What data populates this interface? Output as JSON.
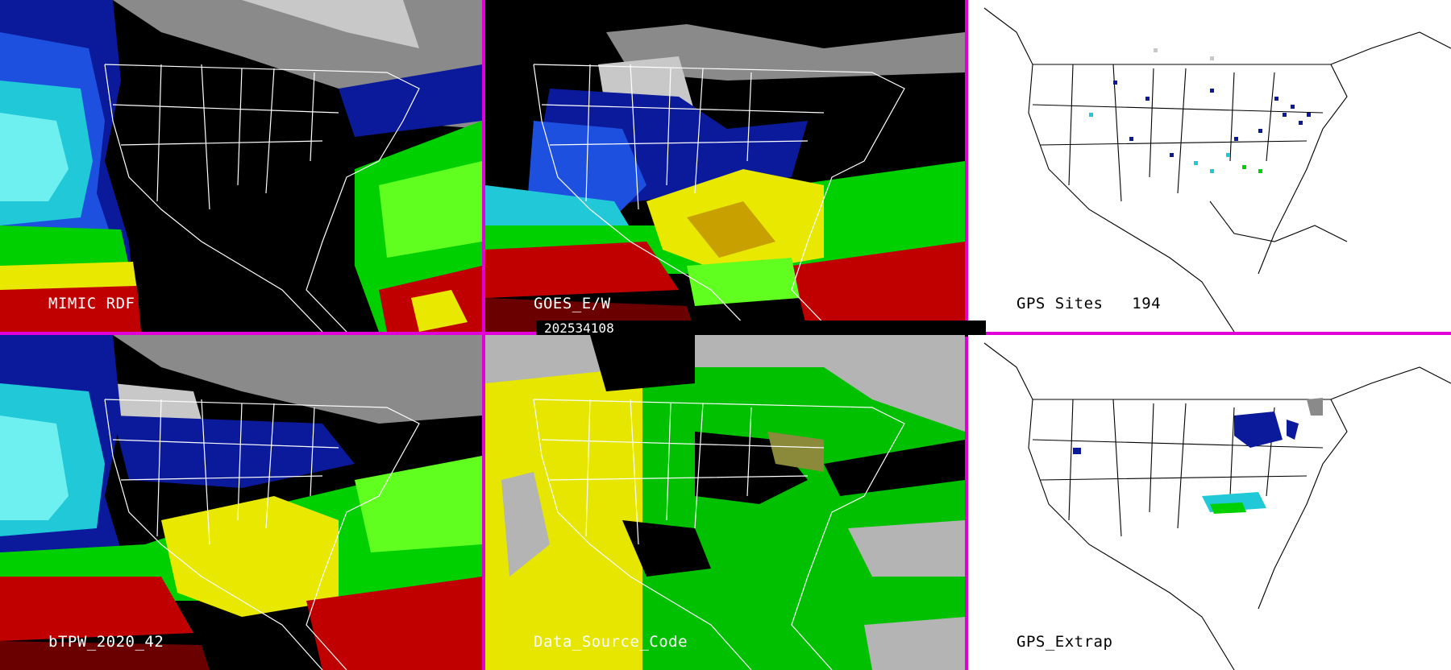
{
  "timestamp": "202534108",
  "colors": {
    "separator": "#e000d8",
    "boundary_on_dark": "#ffffff",
    "boundary_on_white": "#000000",
    "tpw_scale": [
      "#8a8a8a",
      "#c8c8c8",
      "#0a1a9a",
      "#1e50e0",
      "#20c8d8",
      "#6ff0f0",
      "#00d000",
      "#60ff20",
      "#e8e800",
      "#c8a000",
      "#c00000",
      "#6a0000"
    ],
    "source_code": [
      "#b4b4b4",
      "#e6e600",
      "#00c000",
      "#000000",
      "#8a8a3a"
    ]
  },
  "panels": [
    {
      "id": "mimic",
      "label": "MIMIC RDF"
    },
    {
      "id": "goes",
      "label": "GOES_E/W"
    },
    {
      "id": "gps",
      "label": "GPS Sites",
      "value": "194"
    },
    {
      "id": "btpw",
      "label": "bTPW_2020_42"
    },
    {
      "id": "source",
      "label": "Data_Source_Code"
    },
    {
      "id": "extrap",
      "label": "GPS_Extrap"
    }
  ]
}
